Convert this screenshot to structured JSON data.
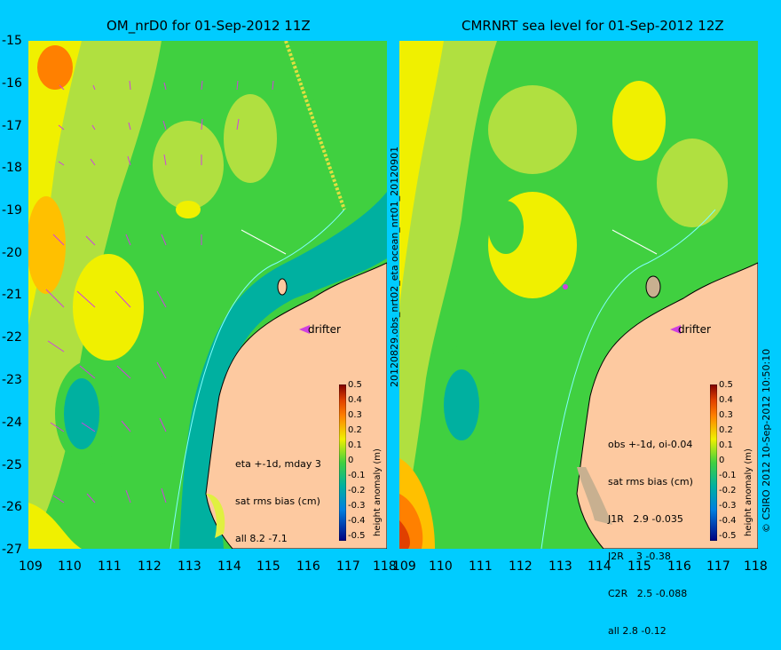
{
  "left_panel": {
    "title": "OM_nrD0 for 01-Sep-2012 11Z",
    "side_label": "20120829.obs_nrt02_eta   ocean_nrt01_20120901",
    "stats": [
      "eta +-1d, mday 3",
      "sat rms bias (cm)",
      "all 8.2 -7.1"
    ],
    "drifter_label": "drifter",
    "colorbar_title": "height anomaly (m)"
  },
  "right_panel": {
    "title": "CMRNRT sea level  for 01-Sep-2012 12Z",
    "side_label": "© CSIRO 2012   10-Sep-2012 10:50:10",
    "stats": [
      "obs +-1d, oi-0.04",
      "sat rms bias (cm)",
      "J1R   2.9 -0.035",
      "J2R    3 -0.38",
      "C2R   2.5 -0.088",
      "all 2.8 -0.12"
    ],
    "drifter_label": "drifter",
    "colorbar_title": "height anomaly (m)"
  },
  "axes": {
    "y_ticks": [
      "-15",
      "-16",
      "-17",
      "-18",
      "-19",
      "-20",
      "-21",
      "-22",
      "-23",
      "-24",
      "-25",
      "-26",
      "-27"
    ],
    "x_ticks_left": [
      "109",
      "110",
      "111",
      "112",
      "113",
      "114",
      "115",
      "116",
      "117",
      "118"
    ],
    "x_ticks_right": [
      "109",
      "110",
      "111",
      "112",
      "113",
      "114",
      "115",
      "116",
      "117",
      "118"
    ],
    "lon_range": [
      109,
      118
    ],
    "lat_range": [
      -27,
      -15
    ]
  },
  "colorbar": {
    "ticks": [
      "0.5",
      "0.4",
      "0.3",
      "0.2",
      "0.1",
      "0",
      "-0.1",
      "-0.2",
      "-0.3",
      "-0.4",
      "-0.5"
    ],
    "colors": [
      "#a01000",
      "#e04000",
      "#ff8000",
      "#ffc000",
      "#f0f000",
      "#b0e040",
      "#40d040",
      "#00b0a0",
      "#0080e0",
      "#0030c0",
      "#000080"
    ]
  },
  "colors": {
    "background": "#00ccff",
    "land": "#fdc9a0",
    "arrow": "#d040e0",
    "track": "#e0e040"
  }
}
